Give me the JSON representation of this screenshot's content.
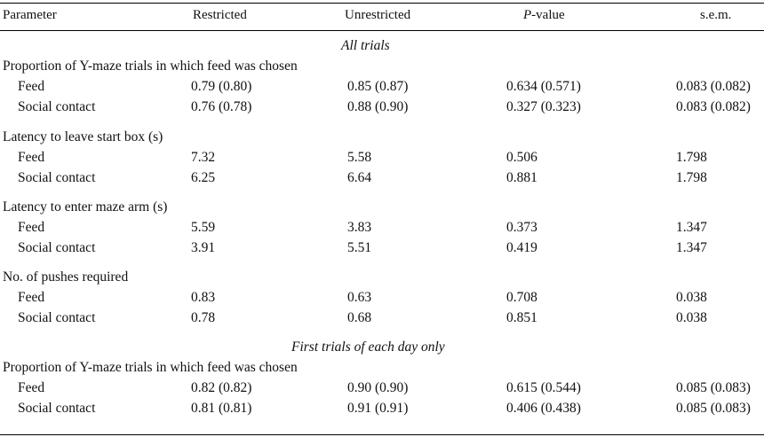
{
  "headers": {
    "parameter": "Parameter",
    "restricted": "Restricted",
    "unrestricted": "Unrestricted",
    "p_value_italic": "P",
    "p_value_rest": "-value",
    "sem": "s.e.m."
  },
  "sections": [
    {
      "title": "All trials",
      "groups": [
        {
          "label": "Proportion of Y-maze trials in which feed was chosen",
          "rows": [
            {
              "name": "Feed",
              "restricted": "0.79 (0.80)",
              "unrestricted": "0.85 (0.87)",
              "p": "0.634 (0.571)",
              "sem": "0.083 (0.082)"
            },
            {
              "name": "Social contact",
              "restricted": "0.76 (0.78)",
              "unrestricted": "0.88 (0.90)",
              "p": "0.327 (0.323)",
              "sem": "0.083 (0.082)"
            }
          ]
        },
        {
          "label": "Latency to leave start box (s)",
          "rows": [
            {
              "name": "Feed",
              "restricted": "7.32",
              "unrestricted": "5.58",
              "p": "0.506",
              "sem": "1.798"
            },
            {
              "name": "Social contact",
              "restricted": "6.25",
              "unrestricted": "6.64",
              "p": "0.881",
              "sem": "1.798"
            }
          ]
        },
        {
          "label": "Latency to enter maze arm (s)",
          "rows": [
            {
              "name": "Feed",
              "restricted": "5.59",
              "unrestricted": "3.83",
              "p": "0.373",
              "sem": "1.347"
            },
            {
              "name": "Social contact",
              "restricted": "3.91",
              "unrestricted": "5.51",
              "p": "0.419",
              "sem": "1.347"
            }
          ]
        },
        {
          "label": "No. of pushes required",
          "rows": [
            {
              "name": "Feed",
              "restricted": "0.83",
              "unrestricted": "0.63",
              "p": "0.708",
              "sem": "0.038"
            },
            {
              "name": "Social contact",
              "restricted": "0.78",
              "unrestricted": "0.68",
              "p": "0.851",
              "sem": "0.038"
            }
          ]
        }
      ]
    },
    {
      "title": "First trials of each day only",
      "groups": [
        {
          "label": "Proportion of Y-maze trials in which feed was chosen",
          "rows": [
            {
              "name": "Feed",
              "restricted": "0.82 (0.82)",
              "unrestricted": "0.90 (0.90)",
              "p": "0.615 (0.544)",
              "sem": "0.085 (0.083)"
            },
            {
              "name": "Social contact",
              "restricted": "0.81 (0.81)",
              "unrestricted": "0.91 (0.91)",
              "p": "0.406 (0.438)",
              "sem": "0.085 (0.083)"
            }
          ]
        }
      ]
    }
  ]
}
